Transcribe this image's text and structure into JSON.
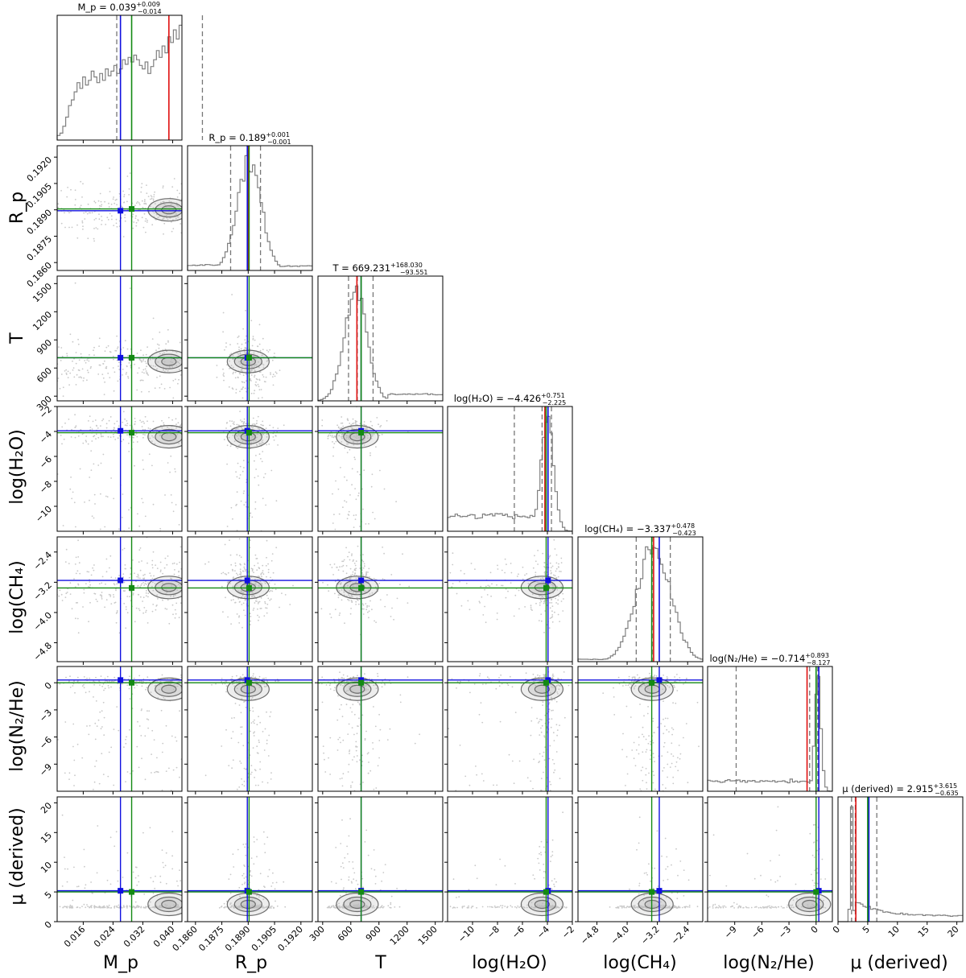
{
  "chart_data": {
    "type": "corner",
    "parameters": [
      {
        "key": "Mp",
        "label": "M_p",
        "lim": [
          0.009,
          0.0425
        ],
        "ticks": [
          0.016,
          0.024,
          0.032,
          0.04
        ],
        "tick_labels": [
          "0.016",
          "0.024",
          "0.032",
          "0.040"
        ],
        "ylabels": [],
        "title": {
          "name": "M_p",
          "median": "0.039",
          "plus": "+0.009",
          "minus": "−0.014"
        },
        "quantiles": [
          0.025,
          0.039,
          0.048
        ],
        "truth_red": 0.039,
        "value_blue": 0.026,
        "value_green": 0.029,
        "marginal": [
          0.04,
          0.06,
          0.12,
          0.2,
          0.3,
          0.35,
          0.42,
          0.5,
          0.45,
          0.55,
          0.48,
          0.52,
          0.6,
          0.55,
          0.5,
          0.58,
          0.52,
          0.62,
          0.56,
          0.6,
          0.65,
          0.58,
          0.62,
          0.7,
          0.66,
          0.72,
          0.68,
          0.74,
          0.7,
          0.65,
          0.62,
          0.68,
          0.58,
          0.64,
          0.7,
          0.78,
          0.72,
          0.82,
          0.76,
          0.9,
          0.85,
          0.96,
          0.88,
          1.0
        ]
      },
      {
        "key": "Rp",
        "label": "R_p",
        "lim": [
          0.18555,
          0.19265
        ],
        "ticks": [
          0.186,
          0.1875,
          0.189,
          0.1905,
          0.192
        ],
        "tick_labels": [
          "0.1860",
          "0.1875",
          "0.1890",
          "0.1905",
          "0.1920"
        ],
        "ylabels": [
          "0.1860",
          "0.1875",
          "0.1890",
          "0.1905",
          "0.1920"
        ],
        "title": {
          "name": "R_p",
          "median": "0.189",
          "plus": "+0.001",
          "minus": "−0.001"
        },
        "quantiles": [
          0.188,
          0.189,
          0.1897
        ],
        "truth_red": 0.189,
        "value_blue": 0.18895,
        "value_green": 0.18905,
        "marginal_center": 0.18905,
        "marginal_sigma": 0.0007
      },
      {
        "key": "T",
        "label": "T",
        "lim": [
          250,
          1580
        ],
        "ticks": [
          300,
          600,
          900,
          1200,
          1500
        ],
        "tick_labels": [
          "300",
          "600",
          "900",
          "1200",
          "1500"
        ],
        "ylabels": [
          "300",
          "600",
          "900",
          "1200",
          "1500"
        ],
        "title": {
          "name": "T",
          "median": "669.231",
          "plus": "+168.030",
          "minus": "−93.551"
        },
        "quantiles": [
          575.68,
          669.231,
          837.26
        ],
        "truth_red": 665,
        "value_blue": 710,
        "value_green": 710,
        "marginal_center": 650,
        "marginal_sigma": 120
      },
      {
        "key": "H2O",
        "label": "log(H₂O)",
        "lim": [
          -12,
          -2
        ],
        "ticks": [
          -10,
          -8,
          -6,
          -4,
          -2
        ],
        "tick_labels": [
          "−10",
          "−8",
          "−6",
          "−4",
          "−2"
        ],
        "ylabels": [
          "−10",
          "−8",
          "−6",
          "−4",
          "−2"
        ],
        "title": {
          "name": "log(H₂O)",
          "median": "−4.426",
          "plus": "+0.751",
          "minus": "−2.225"
        },
        "quantiles": [
          -6.651,
          -4.426,
          -3.675
        ],
        "truth_red": -4.2,
        "value_blue": -3.95,
        "value_green": -4.1,
        "marginal_center": -4.0,
        "marginal_sigma": 0.5
      },
      {
        "key": "CH4",
        "label": "log(CH₄)",
        "lim": [
          -5.3,
          -2.0
        ],
        "ticks": [
          -4.8,
          -4.0,
          -3.2,
          -2.4
        ],
        "tick_labels": [
          "−4.8",
          "−4.0",
          "−3.2",
          "−2.4"
        ],
        "ylabels": [
          "−4.8",
          "−4.0",
          "−3.2",
          "−2.4"
        ],
        "title": {
          "name": "log(CH₄)",
          "median": "−3.337",
          "plus": "+0.478",
          "minus": "−0.423"
        },
        "quantiles": [
          -3.76,
          -3.337,
          -2.859
        ],
        "truth_red": -3.3,
        "value_blue": -3.15,
        "value_green": -3.35,
        "marginal_center": -3.3,
        "marginal_sigma": 0.45
      },
      {
        "key": "N2He",
        "label": "log(N₂/He)",
        "lim": [
          -12,
          1.8
        ],
        "ticks": [
          -9,
          -6,
          -3,
          0
        ],
        "tick_labels": [
          "−9",
          "−6",
          "−3",
          "0"
        ],
        "ylabels": [
          "−9",
          "−6",
          "−3",
          "0"
        ],
        "title": {
          "name": "log(N₂/He)",
          "median": "−0.714",
          "plus": "+0.893",
          "minus": "−8.127"
        },
        "quantiles": [
          -8.841,
          -0.714,
          0.179
        ],
        "truth_red": -1.0,
        "value_blue": 0.3,
        "value_green": 0.0,
        "marginal_center": 0.2,
        "marginal_sigma": 0.35
      },
      {
        "key": "mu",
        "label": "μ (derived)",
        "lim": [
          0,
          21
        ],
        "ticks": [
          0,
          5,
          10,
          15,
          20
        ],
        "tick_labels": [
          "0",
          "5",
          "10",
          "15",
          "20"
        ],
        "ylabels": [
          "0",
          "5",
          "10",
          "15",
          "20"
        ],
        "title": {
          "name": "μ (derived)",
          "median": "2.915",
          "plus": "+3.615",
          "minus": "−0.635"
        },
        "quantiles": [
          2.28,
          2.915,
          6.53
        ],
        "truth_red": 3.0,
        "value_blue": 5.2,
        "value_green": 5.0,
        "marginal_center": 2.3,
        "marginal_sigma": 0.2
      }
    ],
    "axis_labels": [
      "M_p",
      "R_p",
      "T",
      "log(H₂O)",
      "log(CH₄)",
      "log(N₂/He)",
      "μ (derived)"
    ],
    "colors": {
      "truth": "#e01010",
      "blue": "#1010e0",
      "green": "#138a13",
      "hist": "#808080",
      "contour": "#6d6d6d",
      "fill": "#bdbdbd",
      "scatter": "#c8c8c8",
      "quantile": "#777777"
    },
    "grid": false,
    "legend": "none"
  }
}
